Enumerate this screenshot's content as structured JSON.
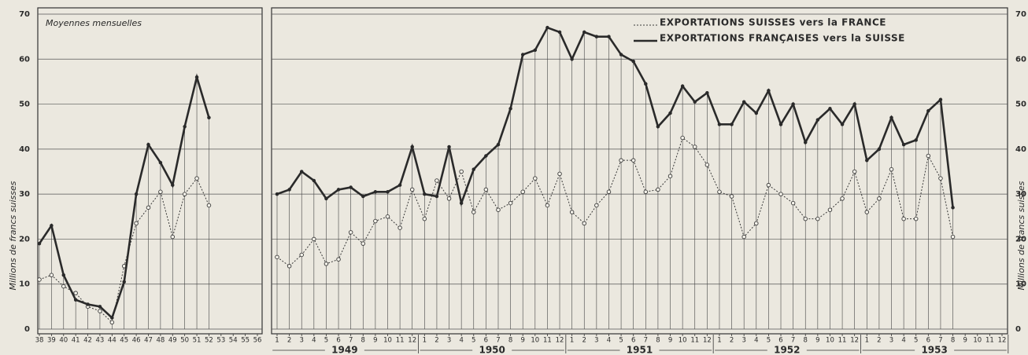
{
  "chart_data": [
    {
      "type": "line",
      "annotation": "Moyennes mensuelles",
      "ylabel": "Millions de francs suisses",
      "categories": [
        "38",
        "39",
        "40",
        "41",
        "42",
        "43",
        "44",
        "45",
        "46",
        "47",
        "48",
        "49",
        "50",
        "51",
        "52",
        "53",
        "54",
        "55",
        "56"
      ],
      "series": [
        {
          "style": "dotted",
          "color": "#3a3a3a",
          "values": [
            11,
            12,
            9.5,
            8,
            5,
            4,
            1.5,
            14,
            23.5,
            27,
            30.5,
            20.5,
            30,
            33.5,
            27.5,
            null,
            null,
            null,
            null
          ]
        },
        {
          "style": "solid",
          "color": "#2a2a2a",
          "values": [
            19,
            23,
            12,
            6.5,
            5.5,
            5,
            2.5,
            10.5,
            30,
            41,
            37,
            32,
            45,
            56,
            47,
            null,
            null,
            null,
            null
          ]
        }
      ],
      "ylim": [
        0,
        70
      ],
      "yticks": [
        0,
        10,
        20,
        30,
        40,
        50,
        60,
        70
      ],
      "grid": true
    },
    {
      "type": "line",
      "ylabel": "Millions de francs suisses",
      "categories": [
        "1",
        "2",
        "3",
        "4",
        "5",
        "6",
        "7",
        "8",
        "9",
        "10",
        "11",
        "12",
        "1",
        "2",
        "3",
        "4",
        "5",
        "6",
        "7",
        "8",
        "9",
        "10",
        "11",
        "12",
        "1",
        "2",
        "3",
        "4",
        "5",
        "6",
        "7",
        "8",
        "9",
        "10",
        "11",
        "12",
        "1",
        "2",
        "3",
        "4",
        "5",
        "6",
        "7",
        "8",
        "9",
        "10",
        "11",
        "12",
        "1",
        "2",
        "3",
        "4",
        "5",
        "6",
        "7",
        "8",
        "9",
        "10",
        "11",
        "12"
      ],
      "years": [
        1949,
        1950,
        1951,
        1952,
        1953
      ],
      "legend": "top-right",
      "series": [
        {
          "name": "EXPORTATIONS SUISSES vers la FRANCE",
          "style": "dotted",
          "color": "#3a3a3a",
          "values": [
            16,
            14,
            16.5,
            20,
            14.5,
            15.5,
            21.5,
            19,
            24,
            25,
            22.5,
            31,
            24.5,
            33,
            29,
            35,
            26,
            31,
            26.5,
            28,
            30.5,
            33.5,
            27.5,
            34.5,
            26,
            23.5,
            27.5,
            30.5,
            37.5,
            37.5,
            30.5,
            31,
            34,
            42.5,
            40.5,
            36.5,
            30.5,
            29.5,
            20.5,
            23.5,
            32,
            30,
            28,
            24.5,
            24.5,
            26.5,
            29,
            35,
            26,
            29,
            35.5,
            24.5,
            24.5,
            38.5,
            33.5,
            20.5,
            null,
            null,
            null,
            null
          ]
        },
        {
          "name": "EXPORTATIONS FRANÇAISES vers la SUISSE",
          "style": "solid",
          "color": "#2a2a2a",
          "values": [
            30,
            31,
            35,
            33,
            29,
            31,
            31.5,
            29.5,
            30.5,
            30.5,
            32,
            40.5,
            30,
            29.5,
            40.5,
            28,
            35.5,
            38.5,
            41,
            49,
            61,
            62,
            67,
            66,
            60,
            66,
            65,
            65,
            61,
            59.5,
            54.5,
            45,
            48,
            54,
            50.5,
            52.5,
            45.5,
            45.5,
            50.5,
            48,
            53,
            45.5,
            50,
            41.5,
            46.5,
            49,
            45.5,
            50,
            37.5,
            40,
            47,
            41,
            42,
            48.5,
            51,
            27,
            null,
            null,
            null,
            null
          ]
        }
      ],
      "ylim": [
        0,
        70
      ],
      "yticks": [
        0,
        10,
        20,
        30,
        40,
        50,
        60,
        70
      ],
      "grid": true
    }
  ]
}
